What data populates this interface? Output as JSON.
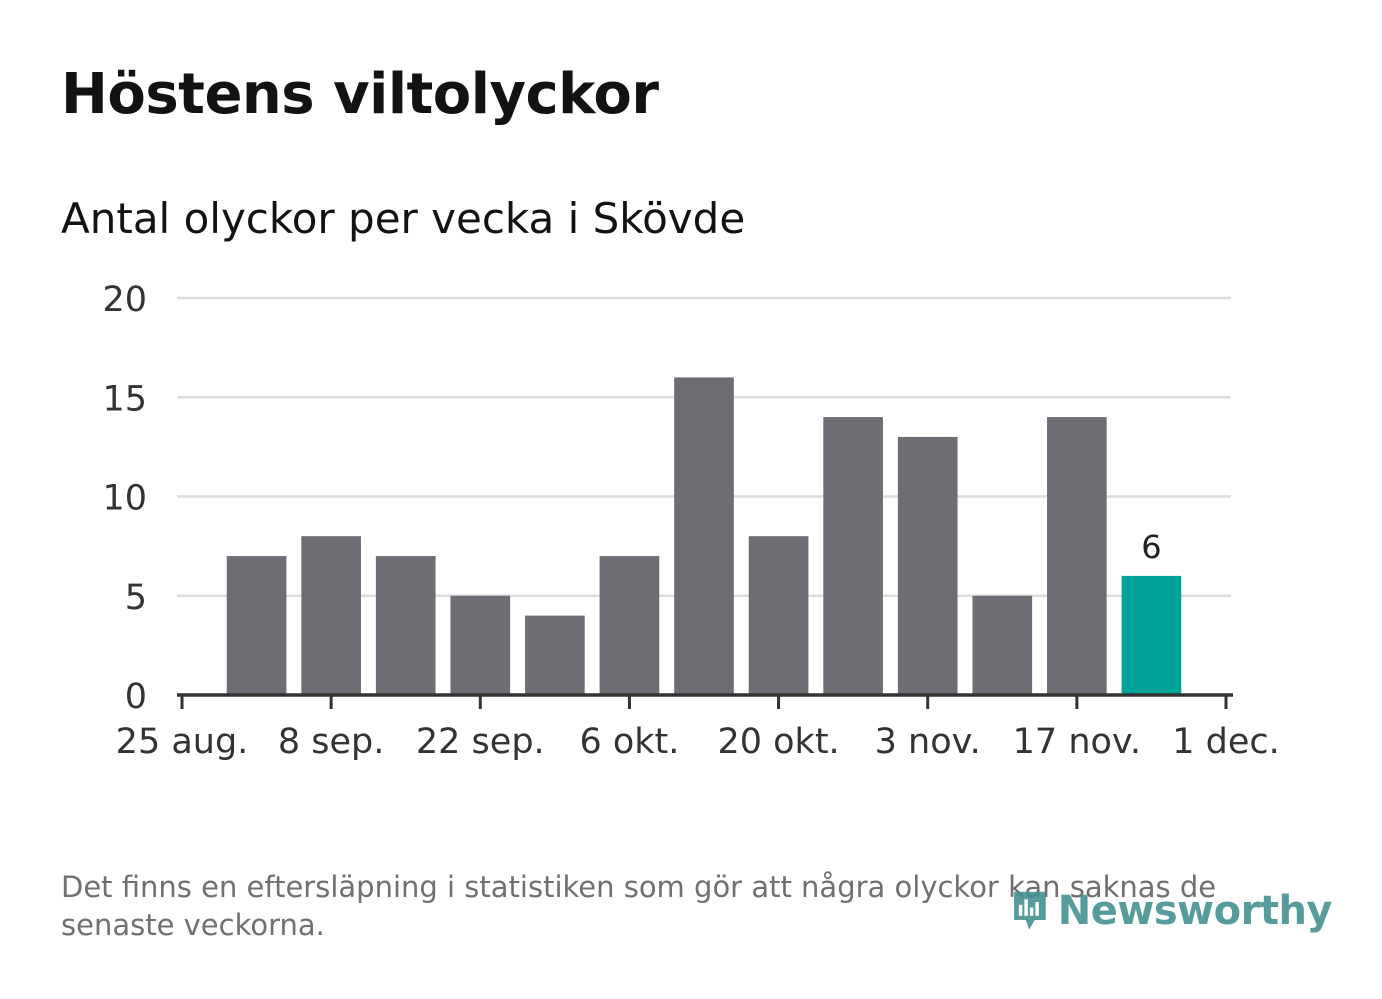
{
  "chart_data": {
    "type": "bar",
    "title": "Höstens viltolyckor",
    "subtitle": "Antal olyckor per vecka i Skövde",
    "x_tick_labels": [
      "25 aug.",
      "8 sep.",
      "22 sep.",
      "6 okt.",
      "20 okt.",
      "3 nov.",
      "17 nov.",
      "1 dec."
    ],
    "weeks": [
      "2019-09-01",
      "2019-09-08",
      "2019-09-15",
      "2019-09-22",
      "2019-09-29",
      "2019-10-06",
      "2019-10-13",
      "2019-10-20",
      "2019-10-27",
      "2019-11-03",
      "2019-11-10",
      "2019-11-17",
      "2019-11-24"
    ],
    "values": [
      7,
      8,
      7,
      5,
      4,
      7,
      16,
      8,
      14,
      13,
      5,
      14,
      6
    ],
    "highlight_index": 12,
    "highlight_label": "6",
    "ylim": [
      0,
      20
    ],
    "y_ticks": [
      0,
      5,
      10,
      15,
      20
    ],
    "grid": true,
    "colors": {
      "bar": "#6e6d73",
      "highlight": "#00a39a",
      "grid": "#dcdcdc",
      "axis": "#333333"
    }
  },
  "footnote": "Det finns en eftersläpning i statistiken som gör att några olyckor kan saknas de senaste veckorna.",
  "brand": {
    "name": "Newsworthy",
    "icon": "newsworthy-logo-icon",
    "color": "#3f8f8f"
  }
}
